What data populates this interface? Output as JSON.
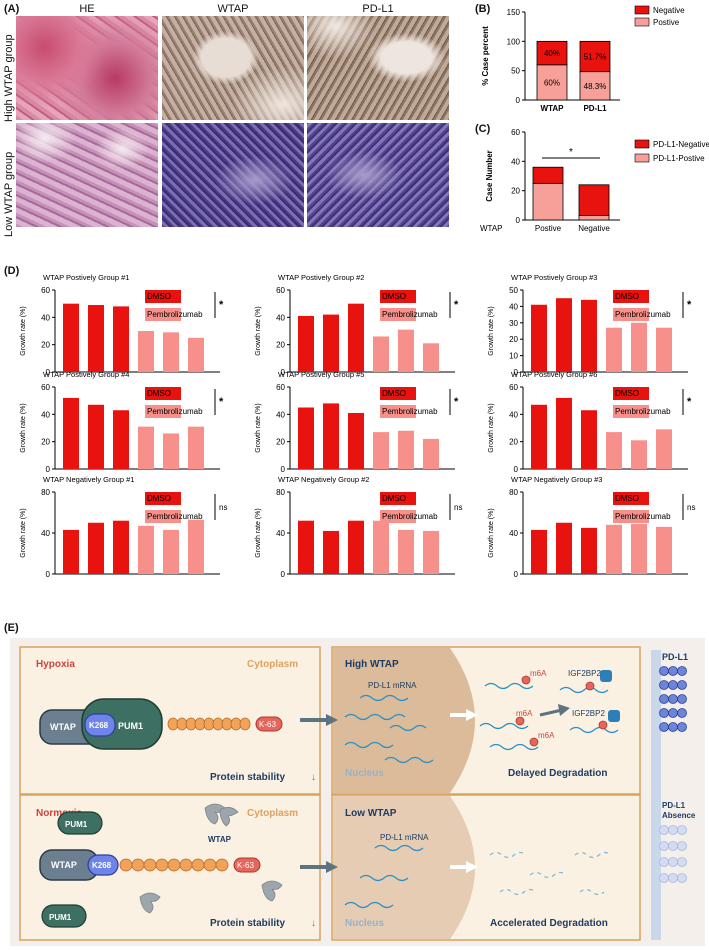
{
  "panels": {
    "A": "(A)",
    "B": "(B)",
    "C": "(C)",
    "D": "(D)",
    "E": "(E)"
  },
  "panelA": {
    "col_labels": [
      "HE",
      "WTAP",
      "PD-L1"
    ],
    "row_labels": [
      "High WTAP group",
      "Low WTAP group"
    ]
  },
  "chart_data": [
    {
      "id": "B",
      "type": "bar",
      "stacked": true,
      "categories": [
        "WTAP",
        "PD-L1"
      ],
      "series": [
        {
          "name": "Postive",
          "values": [
            60,
            48.3
          ],
          "color": "#f7a09a"
        },
        {
          "name": "Negative",
          "values": [
            40,
            51.7
          ],
          "color": "#e8130f"
        }
      ],
      "data_labels": [
        [
          "60%",
          "48.3%"
        ],
        [
          "40%",
          "51.7%"
        ]
      ],
      "ylabel": "% Case percent",
      "ylim": [
        0,
        150
      ],
      "yticks": [
        0,
        50,
        100,
        150
      ],
      "legend": "top-right"
    },
    {
      "id": "C",
      "type": "bar",
      "stacked": true,
      "categories": [
        "Postive",
        "Negative"
      ],
      "xaxis_title": "WTAP",
      "series": [
        {
          "name": "PD-L1-Postive",
          "values": [
            25,
            3
          ],
          "color": "#f7a09a"
        },
        {
          "name": "PD-L1-Negative",
          "values": [
            11,
            21
          ],
          "color": "#e8130f"
        }
      ],
      "ylabel": "Case Number",
      "ylim": [
        0,
        60
      ],
      "yticks": [
        0,
        20,
        40,
        60
      ],
      "significance": "*",
      "legend": "top-right"
    },
    {
      "id": "D1",
      "type": "bar",
      "title": "WTAP Postively Group #1",
      "groups": [
        "DMSO",
        "Pembrolizumab"
      ],
      "values": [
        [
          50,
          49,
          48
        ],
        [
          30,
          29,
          25
        ]
      ],
      "ylabel": "Growth rate (%)",
      "ylim": [
        0,
        60
      ],
      "yticks": [
        0,
        20,
        40,
        60
      ],
      "significance": "*"
    },
    {
      "id": "D2",
      "type": "bar",
      "title": "WTAP Postively Group #2",
      "groups": [
        "DMSO",
        "Pembrolizumab"
      ],
      "values": [
        [
          41,
          42,
          50
        ],
        [
          26,
          31,
          21
        ]
      ],
      "ylabel": "Growth rate (%)",
      "ylim": [
        0,
        60
      ],
      "yticks": [
        0,
        20,
        40,
        60
      ],
      "significance": "*"
    },
    {
      "id": "D3",
      "type": "bar",
      "title": "WTAP Postively Group #3",
      "groups": [
        "DMSO",
        "Pembrolizumab"
      ],
      "values": [
        [
          41,
          45,
          44
        ],
        [
          27,
          30,
          27
        ]
      ],
      "ylabel": "Growth rate (%)",
      "ylim": [
        0,
        50
      ],
      "yticks": [
        0,
        10,
        20,
        30,
        40,
        50
      ],
      "significance": "*"
    },
    {
      "id": "D4",
      "type": "bar",
      "title": "WTAP Postively Group #4",
      "groups": [
        "DMSO",
        "Pembrolizumab"
      ],
      "values": [
        [
          52,
          47,
          43
        ],
        [
          31,
          26,
          31
        ]
      ],
      "ylabel": "Growth rate (%)",
      "ylim": [
        0,
        60
      ],
      "yticks": [
        0,
        20,
        40,
        60
      ],
      "significance": "*"
    },
    {
      "id": "D5",
      "type": "bar",
      "title": "WTAP Postively Group #5",
      "groups": [
        "DMSO",
        "Pembrolizumab"
      ],
      "values": [
        [
          45,
          48,
          41
        ],
        [
          27,
          28,
          22
        ]
      ],
      "ylabel": "Growth rate (%)",
      "ylim": [
        0,
        60
      ],
      "yticks": [
        0,
        20,
        40,
        60
      ],
      "significance": "*"
    },
    {
      "id": "D6",
      "type": "bar",
      "title": "WTAP Postively Group #6",
      "groups": [
        "DMSO",
        "Pembrolizumab"
      ],
      "values": [
        [
          47,
          52,
          43
        ],
        [
          27,
          21,
          29
        ]
      ],
      "ylabel": "Growth rate (%)",
      "ylim": [
        0,
        60
      ],
      "yticks": [
        0,
        20,
        40,
        60
      ],
      "significance": "*"
    },
    {
      "id": "D7",
      "type": "bar",
      "title": "WTAP Negatively Group #1",
      "groups": [
        "DMSO",
        "Pembrolizumab"
      ],
      "values": [
        [
          43,
          50,
          52
        ],
        [
          47,
          43,
          53
        ]
      ],
      "ylabel": "Growth rate (%)",
      "ylim": [
        0,
        80
      ],
      "yticks": [
        0,
        40,
        80
      ],
      "significance": "ns"
    },
    {
      "id": "D8",
      "type": "bar",
      "title": "WTAP Negatively Group #2",
      "groups": [
        "DMSO",
        "Pembrolizumab"
      ],
      "values": [
        [
          52,
          42,
          52
        ],
        [
          52,
          43,
          42
        ]
      ],
      "ylabel": "Growth rate (%)",
      "ylim": [
        0,
        80
      ],
      "yticks": [
        0,
        40,
        80
      ],
      "significance": "ns"
    },
    {
      "id": "D9",
      "type": "bar",
      "title": "WTAP Negatively Group #3",
      "groups": [
        "DMSO",
        "Pembrolizumab"
      ],
      "values": [
        [
          43,
          50,
          45
        ],
        [
          48,
          49,
          46
        ]
      ],
      "ylabel": "Growth rate (%)",
      "ylim": [
        0,
        80
      ],
      "yticks": [
        0,
        40,
        80
      ],
      "significance": "ns"
    }
  ],
  "panelD_colors": {
    "DMSO": "#e8130f",
    "Pembrolizumab": "#f7908a"
  },
  "panelE": {
    "top": {
      "condition": "Hypoxia",
      "cytoplasm": "Cytoplasm",
      "wtap": "WTAP",
      "k268": "K268",
      "pum1": "PUM1",
      "k63": "K-63",
      "stability": "Protein stability",
      "stability_arrow": "↓"
    },
    "bottom": {
      "condition": "Normoxia",
      "cytoplasm": "Cytoplasm",
      "wtap": "WTAP",
      "k268": "K268",
      "pum1": "PUM1",
      "wtap_free": "WTAP",
      "k63": "K-63",
      "stability": "Protein stability",
      "stability_arrow": "↓"
    },
    "nucleus_top": {
      "title": "High WTAP",
      "mrna": "PD-L1 mRNA",
      "nucleus": "Nucleus",
      "m6a": "m6A",
      "igf": "IGF2BP2",
      "degradation": "Delayed Degradation"
    },
    "nucleus_bottom": {
      "title": "Low WTAP",
      "mrna": "PD-L1 mRNA",
      "nucleus": "Nucleus",
      "degradation": "Accelerated Degradation"
    },
    "membrane_top": "PD-L1",
    "membrane_bottom_1": "PD-L1",
    "membrane_bottom_2": "Absence"
  },
  "colors": {
    "accent_red": "#e8130f",
    "pink": "#f7a09a",
    "panelE_bg": "#fbf1e2",
    "panelE_border": "#d9a25f",
    "nucleus": "#d9b897",
    "protein_dark": "#3e6f63",
    "protein_wtap": "#6b7f90",
    "k268": "#6e84e8",
    "ubiquitin": "#f2a35a",
    "mrna": "#2a8fc6",
    "red_text": "#d0443c"
  }
}
